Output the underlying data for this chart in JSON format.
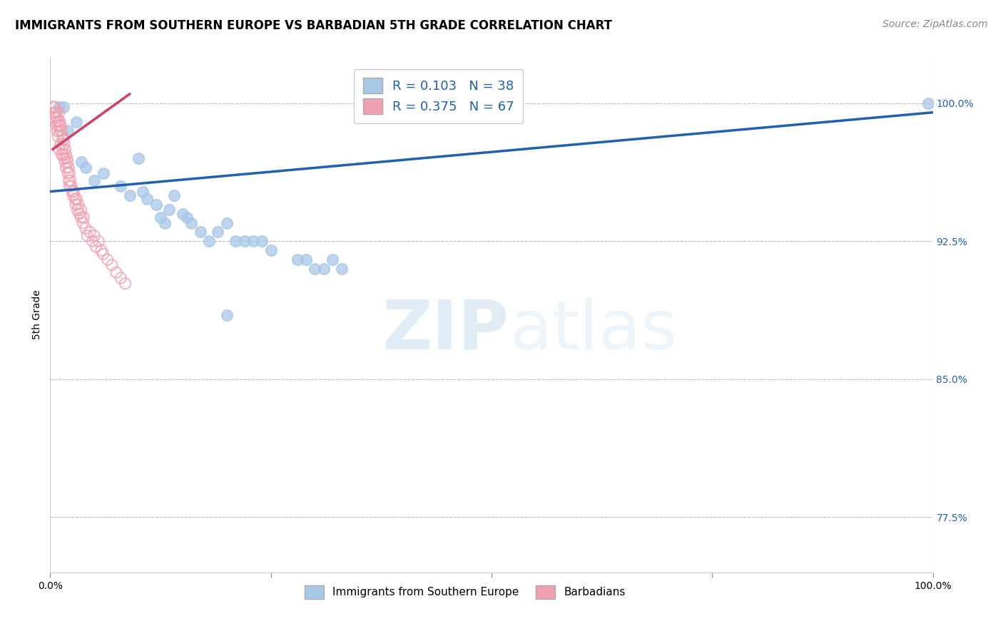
{
  "title": "IMMIGRANTS FROM SOUTHERN EUROPE VS BARBADIAN 5TH GRADE CORRELATION CHART",
  "source": "Source: ZipAtlas.com",
  "ylabel": "5th Grade",
  "watermark_zip": "ZIP",
  "watermark_atlas": "atlas",
  "legend_r1": "R = 0.103",
  "legend_n1": "N = 38",
  "legend_r2": "R = 0.375",
  "legend_n2": "N = 67",
  "legend_label1": "Immigrants from Southern Europe",
  "legend_label2": "Barbadians",
  "xlim": [
    0,
    100
  ],
  "ylim": [
    74.5,
    102.5
  ],
  "yticks": [
    77.5,
    85.0,
    92.5,
    100.0
  ],
  "xticks": [
    0,
    25,
    50,
    75,
    100
  ],
  "xtick_labels": [
    "0.0%",
    "",
    "",
    "",
    "100.0%"
  ],
  "ytick_labels": [
    "77.5%",
    "85.0%",
    "92.5%",
    "100.0%"
  ],
  "blue_color": "#A8C8E8",
  "pink_color": "#F0A0B0",
  "blue_line_color": "#2060B0",
  "pink_line_color": "#D04060",
  "grid_color": "#BBBBBB",
  "blue_scatter_x": [
    1.0,
    1.5,
    2.0,
    3.0,
    3.5,
    4.0,
    5.0,
    6.0,
    8.0,
    9.0,
    10.0,
    10.5,
    11.0,
    12.0,
    12.5,
    13.0,
    13.5,
    14.0,
    15.0,
    15.5,
    16.0,
    17.0,
    18.0,
    19.0,
    20.0,
    21.0,
    22.0,
    23.0,
    24.0,
    25.0,
    28.0,
    29.0,
    30.0,
    31.0,
    32.0,
    33.0,
    20.0,
    99.5
  ],
  "blue_scatter_y": [
    99.8,
    99.8,
    98.5,
    99.0,
    96.8,
    96.5,
    95.8,
    96.2,
    95.5,
    95.0,
    97.0,
    95.2,
    94.8,
    94.5,
    93.8,
    93.5,
    94.2,
    95.0,
    94.0,
    93.8,
    93.5,
    93.0,
    92.5,
    93.0,
    93.5,
    92.5,
    92.5,
    92.5,
    92.5,
    92.0,
    91.5,
    91.5,
    91.0,
    91.0,
    91.5,
    91.0,
    88.5,
    100.0
  ],
  "pink_scatter_x": [
    0.3,
    0.4,
    0.5,
    0.5,
    0.6,
    0.6,
    0.7,
    0.7,
    0.8,
    0.8,
    0.9,
    0.9,
    1.0,
    1.0,
    1.0,
    1.1,
    1.1,
    1.2,
    1.2,
    1.3,
    1.3,
    1.4,
    1.4,
    1.5,
    1.5,
    1.6,
    1.6,
    1.7,
    1.7,
    1.8,
    1.8,
    1.9,
    2.0,
    2.0,
    2.1,
    2.1,
    2.2,
    2.2,
    2.3,
    2.4,
    2.5,
    2.6,
    2.7,
    2.8,
    2.9,
    3.0,
    3.1,
    3.2,
    3.3,
    3.5,
    3.5,
    3.7,
    3.8,
    4.0,
    4.2,
    4.5,
    4.8,
    5.0,
    5.2,
    5.5,
    5.8,
    6.0,
    6.5,
    7.0,
    7.5,
    8.0,
    8.5
  ],
  "pink_scatter_y": [
    99.8,
    99.5,
    99.8,
    99.2,
    99.5,
    99.0,
    99.5,
    98.8,
    99.2,
    98.5,
    99.0,
    98.2,
    99.5,
    98.8,
    97.5,
    99.0,
    98.5,
    98.8,
    97.8,
    98.5,
    97.2,
    98.2,
    97.5,
    98.0,
    97.2,
    97.8,
    97.0,
    97.5,
    96.8,
    97.2,
    96.5,
    97.0,
    96.8,
    96.2,
    96.5,
    95.8,
    96.2,
    95.5,
    95.8,
    95.5,
    95.2,
    95.0,
    95.2,
    94.8,
    94.5,
    94.8,
    94.2,
    94.5,
    94.0,
    94.2,
    93.8,
    93.5,
    93.8,
    93.2,
    92.8,
    93.0,
    92.5,
    92.8,
    92.2,
    92.5,
    92.0,
    91.8,
    91.5,
    91.2,
    90.8,
    90.5,
    90.2
  ],
  "blue_trendline_x": [
    0,
    100
  ],
  "blue_trendline_y": [
    95.2,
    99.5
  ],
  "pink_trendline_x": [
    0.3,
    9.0
  ],
  "pink_trendline_y": [
    97.5,
    100.5
  ],
  "title_fontsize": 12,
  "axis_fontsize": 10,
  "tick_fontsize": 10,
  "source_fontsize": 10
}
